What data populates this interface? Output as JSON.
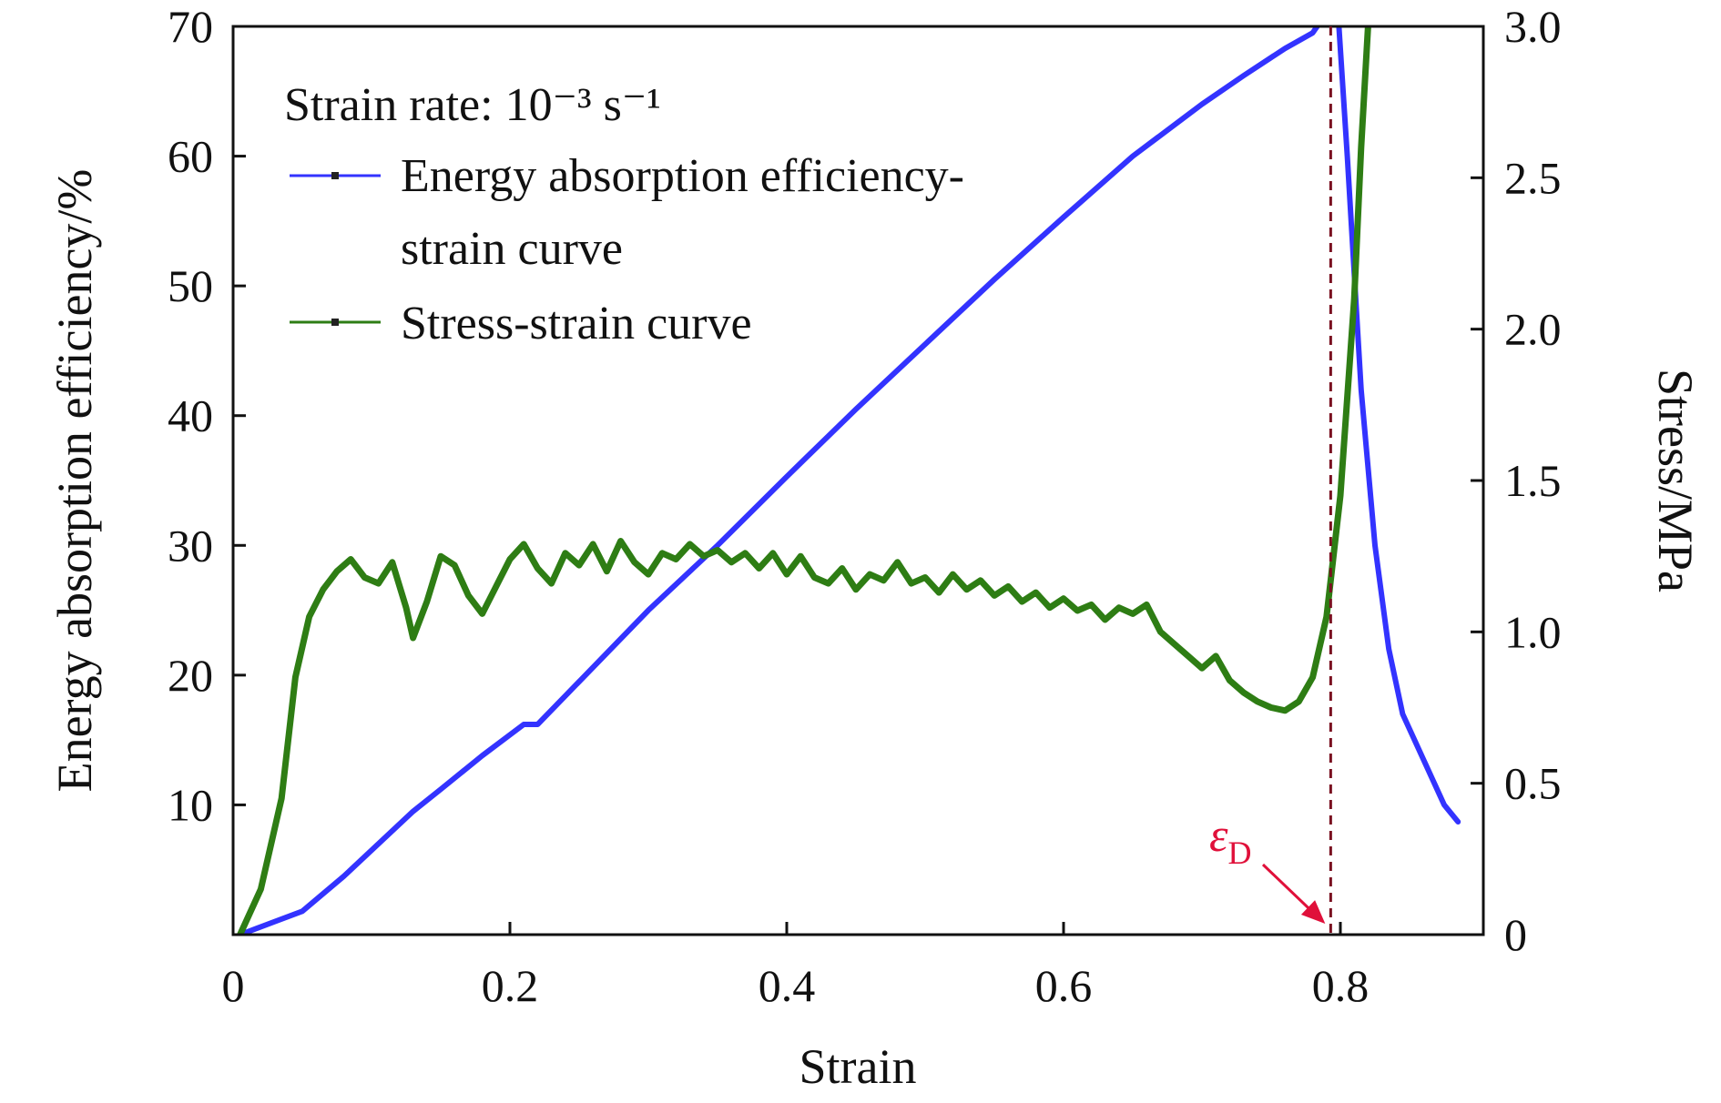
{
  "chart_data": {
    "type": "line",
    "title": "",
    "xlabel": "Strain",
    "ylabel_left": "Energy absorption efficiency/%",
    "ylabel_right": "Stress/MPa",
    "xlim": [
      0,
      0.9
    ],
    "ylim_left": [
      0,
      70
    ],
    "ylim_right": [
      0,
      3.0
    ],
    "x_ticks": [
      {
        "v": 0,
        "label": "0"
      },
      {
        "v": 0.2,
        "label": "0.2"
      },
      {
        "v": 0.4,
        "label": "0.4"
      },
      {
        "v": 0.6,
        "label": "0.6"
      },
      {
        "v": 0.8,
        "label": "0.8"
      }
    ],
    "y_left_ticks": [
      {
        "v": 10,
        "label": "10"
      },
      {
        "v": 20,
        "label": "20"
      },
      {
        "v": 30,
        "label": "30"
      },
      {
        "v": 40,
        "label": "40"
      },
      {
        "v": 50,
        "label": "50"
      },
      {
        "v": 60,
        "label": "60"
      },
      {
        "v": 70,
        "label": "70"
      }
    ],
    "y_right_ticks": [
      {
        "v": 0,
        "label": "0"
      },
      {
        "v": 0.5,
        "label": "0.5"
      },
      {
        "v": 1.0,
        "label": "1.0"
      },
      {
        "v": 1.5,
        "label": "1.5"
      },
      {
        "v": 2.0,
        "label": "2.0"
      },
      {
        "v": 2.5,
        "label": "2.5"
      },
      {
        "v": 3.0,
        "label": "3.0"
      }
    ],
    "grid": false,
    "legend": {
      "placement": "top-left",
      "header": "Strain rate: 10⁻³ s⁻¹",
      "entries": [
        {
          "line1": "Energy absorption efficiency-",
          "line2": "strain curve"
        },
        {
          "line1": "Stress-strain curve",
          "line2": ""
        }
      ]
    },
    "annotation": {
      "symbol": "ε",
      "subscript": "D",
      "x": 0.793
    },
    "series": [
      {
        "key": "efficiency",
        "axis": "left",
        "color": "#3333ff",
        "points": [
          [
            0.005,
            0
          ],
          [
            0.02,
            0.6
          ],
          [
            0.05,
            1.8
          ],
          [
            0.08,
            4.5
          ],
          [
            0.1,
            6.5
          ],
          [
            0.13,
            9.5
          ],
          [
            0.15,
            11.2
          ],
          [
            0.18,
            13.8
          ],
          [
            0.21,
            16.2
          ],
          [
            0.22,
            16.2
          ],
          [
            0.25,
            19.5
          ],
          [
            0.3,
            25
          ],
          [
            0.35,
            30
          ],
          [
            0.4,
            35.3
          ],
          [
            0.45,
            40.5
          ],
          [
            0.5,
            45.5
          ],
          [
            0.55,
            50.5
          ],
          [
            0.6,
            55.3
          ],
          [
            0.65,
            60
          ],
          [
            0.7,
            64
          ],
          [
            0.73,
            66.2
          ],
          [
            0.76,
            68.3
          ],
          [
            0.78,
            69.5
          ],
          [
            0.795,
            71.8
          ],
          [
            0.798,
            71.5
          ],
          [
            0.805,
            60
          ],
          [
            0.815,
            42
          ],
          [
            0.825,
            30
          ],
          [
            0.835,
            22
          ],
          [
            0.845,
            17
          ],
          [
            0.86,
            13.5
          ],
          [
            0.875,
            10
          ],
          [
            0.885,
            8.7
          ]
        ]
      },
      {
        "key": "stress",
        "axis": "right",
        "color": "#2e7d14",
        "points": [
          [
            0.005,
            0
          ],
          [
            0.02,
            0.15
          ],
          [
            0.035,
            0.45
          ],
          [
            0.045,
            0.85
          ],
          [
            0.055,
            1.05
          ],
          [
            0.065,
            1.14
          ],
          [
            0.075,
            1.2
          ],
          [
            0.085,
            1.24
          ],
          [
            0.095,
            1.18
          ],
          [
            0.105,
            1.16
          ],
          [
            0.115,
            1.23
          ],
          [
            0.125,
            1.08
          ],
          [
            0.13,
            0.98
          ],
          [
            0.14,
            1.1
          ],
          [
            0.15,
            1.25
          ],
          [
            0.16,
            1.22
          ],
          [
            0.17,
            1.12
          ],
          [
            0.18,
            1.06
          ],
          [
            0.19,
            1.15
          ],
          [
            0.2,
            1.24
          ],
          [
            0.21,
            1.29
          ],
          [
            0.22,
            1.21
          ],
          [
            0.23,
            1.16
          ],
          [
            0.24,
            1.26
          ],
          [
            0.25,
            1.22
          ],
          [
            0.26,
            1.29
          ],
          [
            0.27,
            1.2
          ],
          [
            0.28,
            1.3
          ],
          [
            0.29,
            1.23
          ],
          [
            0.3,
            1.19
          ],
          [
            0.31,
            1.26
          ],
          [
            0.32,
            1.24
          ],
          [
            0.33,
            1.29
          ],
          [
            0.34,
            1.25
          ],
          [
            0.35,
            1.27
          ],
          [
            0.36,
            1.23
          ],
          [
            0.37,
            1.26
          ],
          [
            0.38,
            1.21
          ],
          [
            0.39,
            1.26
          ],
          [
            0.4,
            1.19
          ],
          [
            0.41,
            1.25
          ],
          [
            0.42,
            1.18
          ],
          [
            0.43,
            1.16
          ],
          [
            0.44,
            1.21
          ],
          [
            0.45,
            1.14
          ],
          [
            0.46,
            1.19
          ],
          [
            0.47,
            1.17
          ],
          [
            0.48,
            1.23
          ],
          [
            0.49,
            1.16
          ],
          [
            0.5,
            1.18
          ],
          [
            0.51,
            1.13
          ],
          [
            0.52,
            1.19
          ],
          [
            0.53,
            1.14
          ],
          [
            0.54,
            1.17
          ],
          [
            0.55,
            1.12
          ],
          [
            0.56,
            1.15
          ],
          [
            0.57,
            1.1
          ],
          [
            0.58,
            1.13
          ],
          [
            0.59,
            1.08
          ],
          [
            0.6,
            1.11
          ],
          [
            0.61,
            1.07
          ],
          [
            0.62,
            1.09
          ],
          [
            0.63,
            1.04
          ],
          [
            0.64,
            1.08
          ],
          [
            0.65,
            1.06
          ],
          [
            0.66,
            1.09
          ],
          [
            0.67,
            1.0
          ],
          [
            0.68,
            0.96
          ],
          [
            0.69,
            0.92
          ],
          [
            0.7,
            0.88
          ],
          [
            0.71,
            0.92
          ],
          [
            0.72,
            0.84
          ],
          [
            0.73,
            0.8
          ],
          [
            0.74,
            0.77
          ],
          [
            0.75,
            0.75
          ],
          [
            0.76,
            0.74
          ],
          [
            0.77,
            0.77
          ],
          [
            0.78,
            0.85
          ],
          [
            0.79,
            1.05
          ],
          [
            0.8,
            1.45
          ],
          [
            0.81,
            2.1
          ],
          [
            0.815,
            2.6
          ],
          [
            0.82,
            3.0
          ]
        ]
      }
    ]
  }
}
